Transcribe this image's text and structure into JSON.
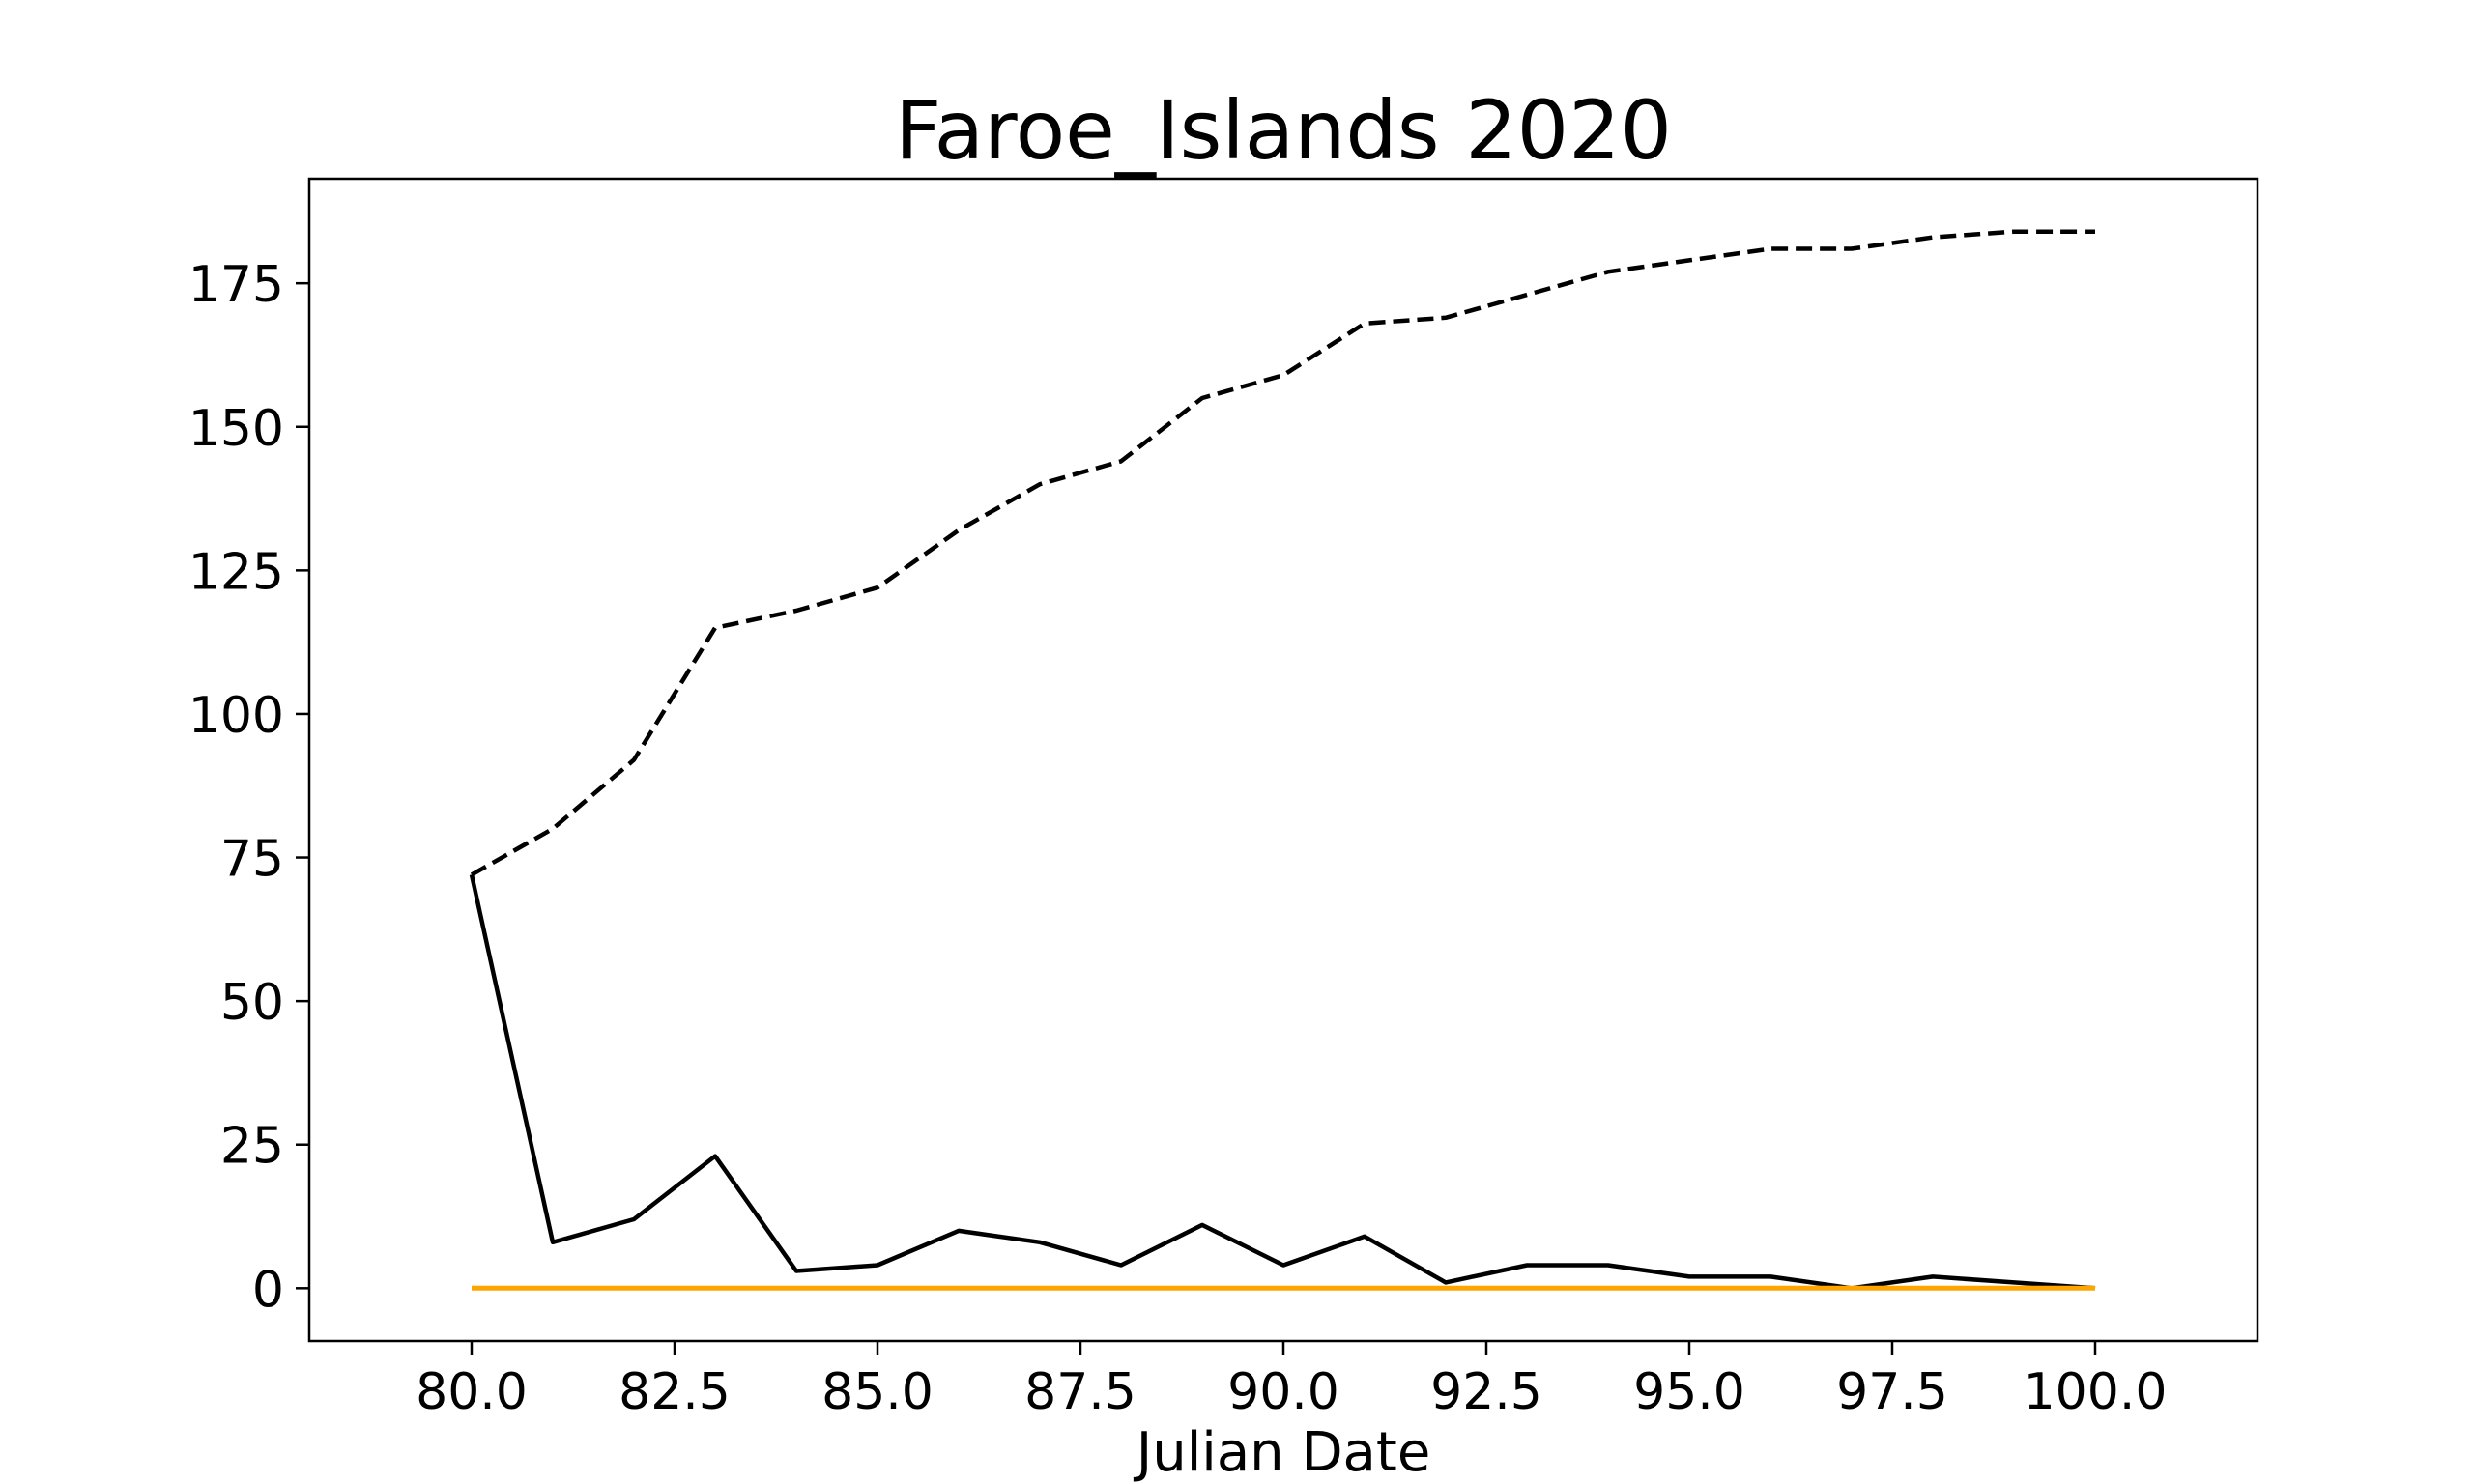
{
  "chart_data": {
    "type": "line",
    "title": "Faroe_Islands 2020",
    "xlabel": "Julian Date",
    "ylabel": "",
    "xlim": [
      78,
      102
    ],
    "ylim": [
      -9.2,
      193.2
    ],
    "xticks": [
      80.0,
      82.5,
      85.0,
      87.5,
      90.0,
      92.5,
      95.0,
      97.5,
      100.0
    ],
    "xtick_labels": [
      "80.0",
      "82.5",
      "85.0",
      "87.5",
      "90.0",
      "92.5",
      "95.0",
      "97.5",
      "100.0"
    ],
    "yticks": [
      0,
      25,
      50,
      75,
      100,
      125,
      150,
      175
    ],
    "ytick_labels": [
      "0",
      "25",
      "50",
      "75",
      "100",
      "125",
      "150",
      "175"
    ],
    "grid": false,
    "x": [
      80,
      81,
      82,
      83,
      84,
      85,
      86,
      87,
      88,
      89,
      90,
      91,
      92,
      93,
      94,
      95,
      96,
      97,
      98,
      99,
      100
    ],
    "series": [
      {
        "style": "dashed",
        "color": "#000000",
        "values": [
          72,
          80,
          92,
          115,
          118,
          122,
          132,
          140,
          144,
          155,
          159,
          168,
          169,
          173,
          177,
          179,
          181,
          181,
          183,
          184,
          184
        ]
      },
      {
        "style": "solid",
        "color": "#000000",
        "values": [
          72,
          8,
          12,
          23,
          3,
          4,
          10,
          8,
          4,
          11,
          4,
          9,
          1,
          4,
          4,
          2,
          2,
          0,
          2,
          1,
          0
        ]
      },
      {
        "style": "solid",
        "color": "#ffa500",
        "values": [
          0,
          0,
          0,
          0,
          0,
          0,
          0,
          0,
          0,
          0,
          0,
          0,
          0,
          0,
          0,
          0,
          0,
          0,
          0,
          0,
          0
        ]
      }
    ]
  }
}
